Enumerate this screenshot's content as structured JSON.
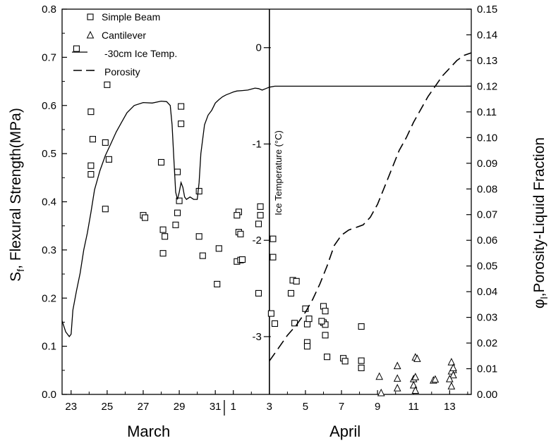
{
  "chart_data": {
    "type": "scatter",
    "ylabel": "Sₙ, Flexural Strength(MPa)",
    "ylabel_parts": {
      "main": "S",
      "sub": "f",
      "rest": ", Flexural Strength(MPa)"
    },
    "y2label": "φₗ,Porosity-Liquid Fraction",
    "y2label_parts": {
      "main": "φ",
      "sub": "l",
      "rest": ",Porosity-Liquid Fraction"
    },
    "inner_axis_label": "Ice Temperature (°C)",
    "x_months": [
      "March",
      "April"
    ],
    "x_ticks": [
      "23",
      "25",
      "27",
      "29",
      "31",
      "1",
      "3",
      "5",
      "7",
      "9",
      "11",
      "13"
    ],
    "x_tick_days": [
      23,
      25,
      27,
      29,
      31,
      32,
      34,
      36,
      38,
      40,
      42,
      44
    ],
    "xlim": [
      22.5,
      45.2
    ],
    "ylim": [
      0,
      0.8
    ],
    "y_ticks": [
      "0.0",
      "0.1",
      "0.2",
      "0.3",
      "0.4",
      "0.5",
      "0.6",
      "0.7",
      "0.8"
    ],
    "y2lim": [
      0,
      0.15
    ],
    "y2_ticks": [
      "0.00",
      "0.01",
      "0.02",
      "0.03",
      "0.04",
      "0.05",
      "0.06",
      "0.07",
      "0.08",
      "0.09",
      "0.10",
      "0.11",
      "0.12",
      "0.13",
      "0.14",
      "0.15"
    ],
    "temp_axis": {
      "x_day": 34,
      "ticks": [
        "0",
        "-1",
        "-2",
        "-3"
      ],
      "values": [
        0,
        -1,
        -2,
        -3
      ],
      "ylim": [
        -3.6,
        0.4
      ]
    },
    "legend": [
      "Simple Beam",
      "Cantilever",
      "-30cm Ice Temp.",
      "Porosity"
    ],
    "legend_position": "top-left",
    "series": [
      {
        "name": "Simple Beam",
        "style": "square",
        "points": [
          [
            23.3,
            0.718
          ],
          [
            24.1,
            0.587
          ],
          [
            24.2,
            0.53
          ],
          [
            24.1,
            0.475
          ],
          [
            24.1,
            0.457
          ],
          [
            25.0,
            0.643
          ],
          [
            24.9,
            0.523
          ],
          [
            25.1,
            0.488
          ],
          [
            24.9,
            0.385
          ],
          [
            27.0,
            0.372
          ],
          [
            27.1,
            0.367
          ],
          [
            28.0,
            0.482
          ],
          [
            28.1,
            0.342
          ],
          [
            28.2,
            0.328
          ],
          [
            28.1,
            0.293
          ],
          [
            29.1,
            0.598
          ],
          [
            29.1,
            0.562
          ],
          [
            28.9,
            0.462
          ],
          [
            29.0,
            0.402
          ],
          [
            28.9,
            0.377
          ],
          [
            28.8,
            0.352
          ],
          [
            30.1,
            0.422
          ],
          [
            30.1,
            0.328
          ],
          [
            30.3,
            0.288
          ],
          [
            31.2,
            0.303
          ],
          [
            31.1,
            0.229
          ],
          [
            32.3,
            0.379
          ],
          [
            32.2,
            0.372
          ],
          [
            32.3,
            0.337
          ],
          [
            32.4,
            0.333
          ],
          [
            32.2,
            0.276
          ],
          [
            32.4,
            0.279
          ],
          [
            32.5,
            0.28
          ],
          [
            33.5,
            0.39
          ],
          [
            33.5,
            0.372
          ],
          [
            33.4,
            0.354
          ],
          [
            33.4,
            0.21
          ],
          [
            34.2,
            0.323
          ],
          [
            34.2,
            0.285
          ],
          [
            34.1,
            0.168
          ],
          [
            34.3,
            0.147
          ],
          [
            35.3,
            0.237
          ],
          [
            35.2,
            0.21
          ],
          [
            35.5,
            0.235
          ],
          [
            35.4,
            0.148
          ],
          [
            36.0,
            0.178
          ],
          [
            36.1,
            0.146
          ],
          [
            36.2,
            0.157
          ],
          [
            36.1,
            0.108
          ],
          [
            36.1,
            0.1
          ],
          [
            37.0,
            0.183
          ],
          [
            37.1,
            0.173
          ],
          [
            37.0,
            0.149
          ],
          [
            37.1,
            0.145
          ],
          [
            36.9,
            0.152
          ],
          [
            37.1,
            0.123
          ],
          [
            37.2,
            0.078
          ],
          [
            38.1,
            0.075
          ],
          [
            38.2,
            0.069
          ],
          [
            39.1,
            0.07
          ],
          [
            39.1,
            0.055
          ],
          [
            39.1,
            0.141
          ]
        ]
      },
      {
        "name": "Cantilever",
        "style": "triangle",
        "points": [
          [
            40.1,
            0.037
          ],
          [
            40.2,
            0.003
          ],
          [
            41.1,
            0.059
          ],
          [
            41.1,
            0.033
          ],
          [
            41.1,
            0.013
          ],
          [
            42.1,
            0.077
          ],
          [
            42.2,
            0.074
          ],
          [
            42.0,
            0.032
          ],
          [
            42.1,
            0.036
          ],
          [
            42.0,
            0.019
          ],
          [
            42.1,
            0.008
          ],
          [
            43.1,
            0.029
          ],
          [
            43.2,
            0.031
          ],
          [
            44.1,
            0.067
          ],
          [
            44.2,
            0.051
          ],
          [
            44.1,
            0.048
          ],
          [
            44.2,
            0.04
          ],
          [
            44.0,
            0.032
          ],
          [
            44.1,
            0.017
          ],
          [
            44.2,
            0.055
          ]
        ]
      },
      {
        "name": "-30cm Ice Temp.",
        "style": "solid",
        "axis": "left",
        "points": [
          [
            22.5,
            0.153
          ],
          [
            22.7,
            0.13
          ],
          [
            22.9,
            0.12
          ],
          [
            23.0,
            0.125
          ],
          [
            23.1,
            0.175
          ],
          [
            23.3,
            0.215
          ],
          [
            23.5,
            0.252
          ],
          [
            23.7,
            0.3
          ],
          [
            23.9,
            0.335
          ],
          [
            24.1,
            0.378
          ],
          [
            24.3,
            0.425
          ],
          [
            24.6,
            0.465
          ],
          [
            24.9,
            0.496
          ],
          [
            25.2,
            0.52
          ],
          [
            25.5,
            0.545
          ],
          [
            25.8,
            0.565
          ],
          [
            26.1,
            0.585
          ],
          [
            26.5,
            0.6
          ],
          [
            27.0,
            0.606
          ],
          [
            27.5,
            0.605
          ],
          [
            28.0,
            0.609
          ],
          [
            28.3,
            0.608
          ],
          [
            28.5,
            0.6
          ],
          [
            28.6,
            0.56
          ],
          [
            28.7,
            0.49
          ],
          [
            28.8,
            0.42
          ],
          [
            28.9,
            0.405
          ],
          [
            29.0,
            0.42
          ],
          [
            29.1,
            0.44
          ],
          [
            29.2,
            0.43
          ],
          [
            29.3,
            0.41
          ],
          [
            29.4,
            0.405
          ],
          [
            29.6,
            0.41
          ],
          [
            29.8,
            0.405
          ],
          [
            30.0,
            0.405
          ],
          [
            30.1,
            0.44
          ],
          [
            30.2,
            0.5
          ],
          [
            30.4,
            0.56
          ],
          [
            30.6,
            0.58
          ],
          [
            30.8,
            0.59
          ],
          [
            31.0,
            0.605
          ],
          [
            31.2,
            0.612
          ],
          [
            31.4,
            0.618
          ],
          [
            31.6,
            0.622
          ],
          [
            31.8,
            0.625
          ],
          [
            32.0,
            0.628
          ],
          [
            32.2,
            0.63
          ],
          [
            32.5,
            0.631
          ],
          [
            32.8,
            0.632
          ],
          [
            33.0,
            0.634
          ],
          [
            33.2,
            0.636
          ],
          [
            33.4,
            0.635
          ],
          [
            33.6,
            0.632
          ],
          [
            33.8,
            0.635
          ],
          [
            34.0,
            0.638
          ],
          [
            34.3,
            0.64
          ],
          [
            35.0,
            0.64
          ],
          [
            36.0,
            0.64
          ],
          [
            38.0,
            0.64
          ],
          [
            40.0,
            0.64
          ],
          [
            42.0,
            0.64
          ],
          [
            44.0,
            0.64
          ],
          [
            45.2,
            0.64
          ]
        ]
      },
      {
        "name": "Porosity",
        "style": "dashed",
        "axis": "right",
        "points": [
          [
            34.0,
            0.013
          ],
          [
            34.3,
            0.016
          ],
          [
            34.6,
            0.019
          ],
          [
            35.0,
            0.023
          ],
          [
            35.5,
            0.027
          ],
          [
            36.0,
            0.032
          ],
          [
            36.4,
            0.037
          ],
          [
            36.8,
            0.043
          ],
          [
            37.2,
            0.05
          ],
          [
            37.6,
            0.058
          ],
          [
            38.0,
            0.062
          ],
          [
            38.4,
            0.064
          ],
          [
            38.8,
            0.065
          ],
          [
            39.2,
            0.066
          ],
          [
            39.6,
            0.069
          ],
          [
            40.0,
            0.074
          ],
          [
            40.4,
            0.081
          ],
          [
            40.8,
            0.088
          ],
          [
            41.2,
            0.095
          ],
          [
            41.6,
            0.1
          ],
          [
            42.0,
            0.106
          ],
          [
            42.4,
            0.111
          ],
          [
            42.8,
            0.116
          ],
          [
            43.2,
            0.12
          ],
          [
            43.6,
            0.124
          ],
          [
            44.0,
            0.127
          ],
          [
            44.4,
            0.13
          ],
          [
            44.8,
            0.132
          ],
          [
            45.2,
            0.133
          ]
        ]
      }
    ]
  }
}
